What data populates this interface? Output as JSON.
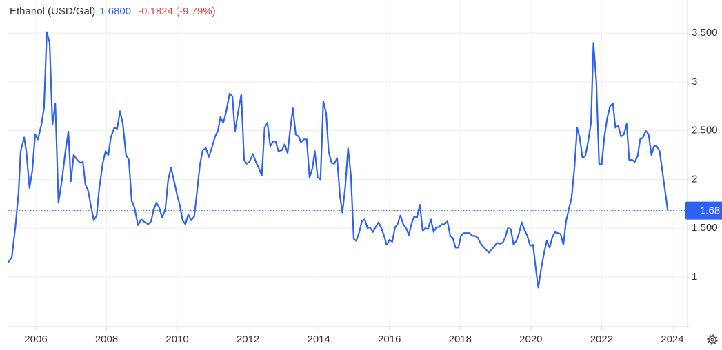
{
  "chart_data": {
    "type": "line",
    "title": "Ethanol (USD/Gal)",
    "price": "1.6800",
    "change": "-0.1824 (-9.79%)",
    "color": "#2f62f0",
    "price_color": "#2f62f0",
    "change_color": "#e0474c",
    "grid": true,
    "last_price": {
      "value": 1.68,
      "label": "1.68"
    },
    "xlim": [
      2005.22,
      2024.43
    ],
    "xticks": [
      2006,
      2008,
      2010,
      2012,
      2014,
      2016,
      2018,
      2020,
      2022,
      2024
    ],
    "ylim": [
      0.49,
      3.84
    ],
    "yticks": [
      {
        "value": 1,
        "label": "1"
      },
      {
        "value": 1.5,
        "label": "1.500"
      },
      {
        "value": 2,
        "label": "2"
      },
      {
        "value": 2.5,
        "label": "2.500"
      },
      {
        "value": 3,
        "label": "3"
      },
      {
        "value": 3.5,
        "label": "3.500"
      }
    ],
    "x": [
      2005.22,
      2005.32,
      2005.42,
      2005.51,
      2005.57,
      2005.67,
      2005.73,
      2005.82,
      2005.9,
      2005.98,
      2006.06,
      2006.16,
      2006.23,
      2006.31,
      2006.39,
      2006.47,
      2006.55,
      2006.64,
      2006.74,
      2006.84,
      2006.92,
      2006.99,
      2007.07,
      2007.17,
      2007.25,
      2007.33,
      2007.4,
      2007.48,
      2007.56,
      2007.64,
      2007.72,
      2007.79,
      2007.89,
      2007.97,
      2008.05,
      2008.12,
      2008.22,
      2008.3,
      2008.38,
      2008.46,
      2008.55,
      2008.63,
      2008.71,
      2008.79,
      2008.89,
      2008.98,
      2009.08,
      2009.18,
      2009.26,
      2009.33,
      2009.41,
      2009.49,
      2009.57,
      2009.66,
      2009.74,
      2009.82,
      2009.9,
      2010.0,
      2010.07,
      2010.15,
      2010.23,
      2010.31,
      2010.39,
      2010.48,
      2010.56,
      2010.64,
      2010.72,
      2010.81,
      2010.89,
      2010.99,
      2011.07,
      2011.15,
      2011.22,
      2011.3,
      2011.38,
      2011.48,
      2011.56,
      2011.63,
      2011.73,
      2011.81,
      2011.89,
      2011.96,
      2012.04,
      2012.14,
      2012.22,
      2012.3,
      2012.39,
      2012.47,
      2012.55,
      2012.63,
      2012.71,
      2012.78,
      2012.86,
      2012.96,
      2013.04,
      2013.12,
      2013.19,
      2013.27,
      2013.35,
      2013.43,
      2013.5,
      2013.58,
      2013.66,
      2013.74,
      2013.82,
      2013.89,
      2013.97,
      2014.05,
      2014.13,
      2014.21,
      2014.28,
      2014.36,
      2014.44,
      2014.52,
      2014.6,
      2014.67,
      2014.75,
      2014.83,
      2014.91,
      2014.99,
      2015.06,
      2015.14,
      2015.22,
      2015.3,
      2015.38,
      2015.45,
      2015.53,
      2015.61,
      2015.69,
      2015.77,
      2015.84,
      2015.92,
      2016.0,
      2016.08,
      2016.16,
      2016.23,
      2016.31,
      2016.39,
      2016.47,
      2016.55,
      2016.62,
      2016.7,
      2016.78,
      2016.86,
      2016.94,
      2017.01,
      2017.09,
      2017.17,
      2017.25,
      2017.33,
      2017.4,
      2017.48,
      2017.56,
      2017.64,
      2017.72,
      2017.79,
      2017.87,
      2017.95,
      2018.02,
      2018.1,
      2018.18,
      2018.26,
      2018.34,
      2018.42,
      2018.5,
      2018.57,
      2018.65,
      2018.73,
      2018.81,
      2018.89,
      2018.96,
      2019.04,
      2019.12,
      2019.2,
      2019.27,
      2019.35,
      2019.43,
      2019.51,
      2019.59,
      2019.66,
      2019.74,
      2019.82,
      2019.9,
      2019.98,
      2020.06,
      2020.14,
      2020.21,
      2020.29,
      2020.37,
      2020.45,
      2020.53,
      2020.6,
      2020.68,
      2020.76,
      2020.84,
      2020.92,
      2020.99,
      2021.07,
      2021.15,
      2021.23,
      2021.31,
      2021.38,
      2021.46,
      2021.54,
      2021.62,
      2021.7,
      2021.77,
      2021.85,
      2021.93,
      2022.0,
      2022.08,
      2022.16,
      2022.24,
      2022.32,
      2022.39,
      2022.47,
      2022.55,
      2022.63,
      2022.71,
      2022.78,
      2022.86,
      2022.94,
      2023.02,
      2023.09,
      2023.17,
      2023.25,
      2023.33,
      2023.41,
      2023.48,
      2023.56,
      2023.64,
      2023.72,
      2023.8,
      2023.87
    ],
    "values": [
      1.15,
      1.2,
      1.51,
      1.86,
      2.29,
      2.43,
      2.29,
      1.91,
      2.09,
      2.46,
      2.41,
      2.57,
      2.73,
      3.51,
      3.4,
      2.56,
      2.78,
      1.76,
      2.0,
      2.3,
      2.49,
      1.98,
      2.25,
      2.2,
      2.17,
      2.18,
      1.95,
      1.88,
      1.72,
      1.58,
      1.63,
      1.9,
      2.16,
      2.29,
      2.25,
      2.43,
      2.53,
      2.52,
      2.7,
      2.57,
      2.25,
      2.2,
      1.78,
      1.71,
      1.53,
      1.59,
      1.56,
      1.54,
      1.57,
      1.69,
      1.76,
      1.71,
      1.61,
      1.69,
      1.99,
      2.12,
      2.0,
      1.83,
      1.74,
      1.58,
      1.54,
      1.64,
      1.58,
      1.62,
      1.88,
      2.15,
      2.3,
      2.32,
      2.23,
      2.34,
      2.44,
      2.5,
      2.64,
      2.58,
      2.69,
      2.88,
      2.85,
      2.49,
      2.71,
      2.87,
      2.2,
      2.16,
      2.18,
      2.26,
      2.18,
      2.12,
      2.04,
      2.53,
      2.58,
      2.34,
      2.39,
      2.39,
      2.29,
      2.3,
      2.36,
      2.27,
      2.5,
      2.73,
      2.46,
      2.44,
      2.38,
      2.41,
      2.41,
      2.02,
      2.11,
      2.29,
      2.02,
      2.0,
      2.8,
      2.68,
      2.29,
      2.17,
      2.16,
      2.22,
      1.83,
      1.66,
      1.92,
      2.32,
      2.04,
      1.39,
      1.37,
      1.45,
      1.57,
      1.59,
      1.5,
      1.51,
      1.46,
      1.51,
      1.56,
      1.5,
      1.43,
      1.33,
      1.38,
      1.36,
      1.51,
      1.54,
      1.63,
      1.54,
      1.5,
      1.43,
      1.54,
      1.62,
      1.61,
      1.74,
      1.47,
      1.5,
      1.49,
      1.59,
      1.46,
      1.51,
      1.51,
      1.54,
      1.54,
      1.57,
      1.42,
      1.4,
      1.3,
      1.3,
      1.42,
      1.45,
      1.45,
      1.45,
      1.42,
      1.42,
      1.4,
      1.35,
      1.31,
      1.28,
      1.25,
      1.28,
      1.31,
      1.35,
      1.34,
      1.35,
      1.4,
      1.5,
      1.49,
      1.33,
      1.37,
      1.44,
      1.56,
      1.48,
      1.42,
      1.32,
      1.33,
      1.08,
      0.89,
      1.08,
      1.24,
      1.37,
      1.3,
      1.4,
      1.46,
      1.45,
      1.44,
      1.33,
      1.56,
      1.69,
      1.81,
      2.11,
      2.53,
      2.43,
      2.22,
      2.24,
      2.39,
      2.58,
      3.4,
      3.01,
      2.16,
      2.15,
      2.44,
      2.63,
      2.75,
      2.78,
      2.53,
      2.55,
      2.44,
      2.46,
      2.57,
      2.2,
      2.2,
      2.18,
      2.24,
      2.41,
      2.43,
      2.5,
      2.46,
      2.25,
      2.34,
      2.34,
      2.29,
      2.08,
      1.87,
      1.68
    ]
  }
}
